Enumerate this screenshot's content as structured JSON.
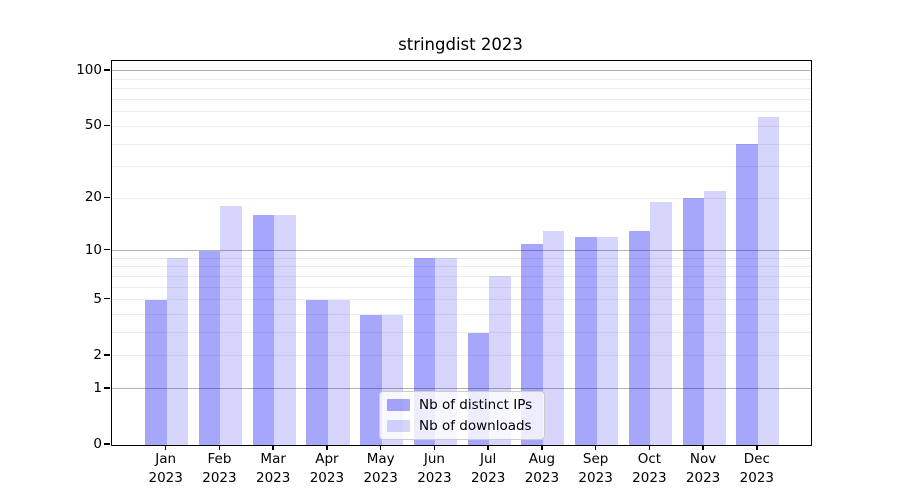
{
  "chart_data": {
    "type": "bar",
    "title": "stringdist 2023",
    "categories": [
      "Jan",
      "Feb",
      "Mar",
      "Apr",
      "May",
      "Jun",
      "Jul",
      "Aug",
      "Sep",
      "Oct",
      "Nov",
      "Dec"
    ],
    "x_tick_year": "2023",
    "series": [
      {
        "name": "Nb of distinct IPs",
        "color": "rgba(0,0,240,0.35)",
        "values": [
          5,
          10,
          16,
          5,
          4,
          9,
          3,
          11,
          12,
          13,
          20,
          40
        ]
      },
      {
        "name": "Nb of downloads",
        "color": "rgba(0,0,240,0.16)",
        "values": [
          9,
          18,
          16,
          5,
          4,
          9,
          7,
          13,
          12,
          19,
          22,
          56
        ]
      }
    ],
    "y_scale": "log1p",
    "ylim": [
      0,
      113
    ],
    "y_ticks": [
      0,
      1,
      2,
      5,
      10,
      20,
      50,
      100
    ],
    "grid": {
      "major": [
        1,
        10,
        100
      ],
      "minor": [
        2,
        3,
        4,
        5,
        6,
        7,
        8,
        9,
        20,
        30,
        40,
        50,
        60,
        70,
        80,
        90
      ],
      "major_color": "#b3b3b3",
      "minor_color": "#ededed"
    },
    "legend": {
      "position": "lower center",
      "entries": [
        "Nb of distinct IPs",
        "Nb of downloads"
      ]
    },
    "frame_color": "#000000",
    "background_color": "#ffffff"
  }
}
